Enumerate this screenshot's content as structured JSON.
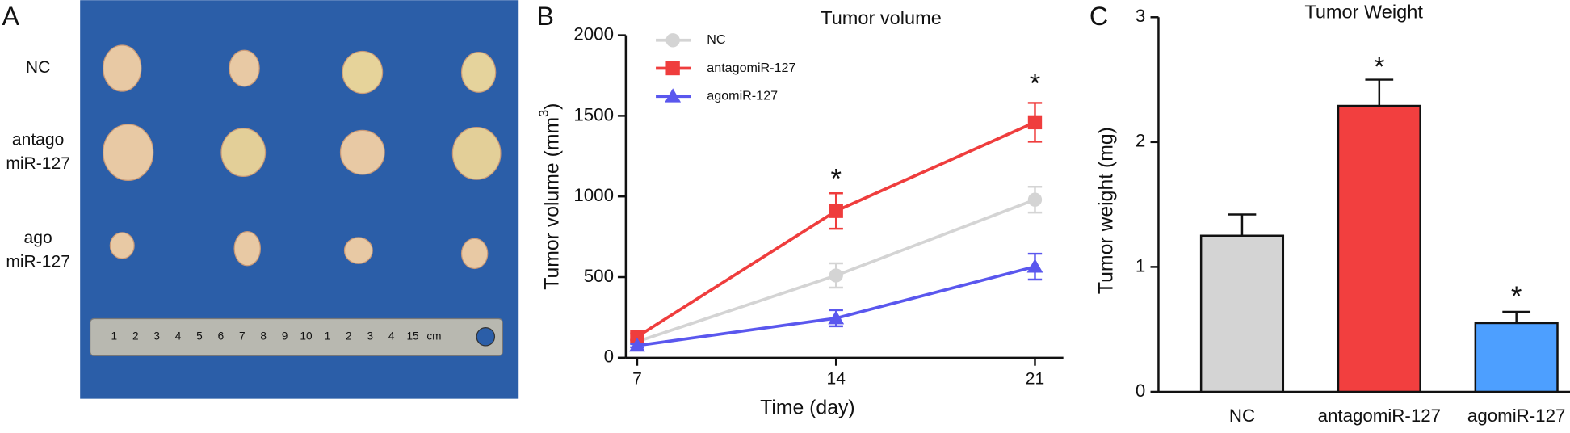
{
  "panel_a": {
    "label": "A",
    "row_labels": [
      [
        "NC"
      ],
      [
        "antago",
        "miR-127"
      ],
      [
        "ago",
        "miR-127"
      ]
    ],
    "ruler_labels": [
      "1",
      "2",
      "3",
      "4",
      "5",
      "6",
      "7",
      "8",
      "9",
      "10",
      "1",
      "2",
      "3",
      "4",
      "15",
      "cm"
    ]
  },
  "chart_data": [
    {
      "type": "line",
      "panel_label": "B",
      "title": "Tumor volume",
      "x_label": "Time (day)",
      "y_label": [
        "Tumor volume (mm",
        "3",
        ")"
      ],
      "x": [
        7,
        14,
        21
      ],
      "xlim": [
        6.6,
        22
      ],
      "xticks": [
        7,
        14,
        21
      ],
      "ylim": [
        0,
        2000
      ],
      "yticks": [
        0,
        500,
        1000,
        1500,
        2000
      ],
      "legend": "upper-left",
      "series": [
        {
          "name": "NC",
          "color": "#d4d4d4",
          "marker": "circle",
          "values": [
            100,
            510,
            980
          ],
          "errors": [
            12,
            75,
            80
          ]
        },
        {
          "name": "antagomiR-127",
          "color": "#ef3d3d",
          "marker": "square",
          "values": [
            130,
            910,
            1460
          ],
          "errors": [
            20,
            110,
            120
          ]
        },
        {
          "name": "agomiR-127",
          "color": "#5a57ee",
          "marker": "triangle",
          "values": [
            75,
            245,
            565
          ],
          "errors": [
            10,
            50,
            80
          ]
        }
      ],
      "annotations": [
        {
          "x": 14,
          "y": 1100,
          "text": "*",
          "color": "#f0821e"
        },
        {
          "x": 21,
          "y": 1690,
          "text": "*",
          "color": "#f0821e"
        }
      ]
    },
    {
      "type": "bar",
      "panel_label": "C",
      "title": "Tumor Weight",
      "y_label": "Tumor weight (mg)",
      "categories": [
        "NC",
        "antagomiR-127",
        "agomiR-127"
      ],
      "values": [
        1.25,
        2.29,
        0.55
      ],
      "errors": [
        0.17,
        0.21,
        0.09
      ],
      "colors": [
        "#d4d4d4",
        "#f23f3f",
        "#4d9fff"
      ],
      "ylim": [
        0,
        3
      ],
      "yticks": [
        0,
        1,
        2,
        3
      ],
      "annotations": [
        {
          "x": "antagomiR-127",
          "y": 2.59,
          "text": "*",
          "color": "#f0821e"
        },
        {
          "x": "agomiR-127",
          "y": 0.75,
          "text": "*",
          "color": "#f0821e"
        }
      ]
    }
  ]
}
